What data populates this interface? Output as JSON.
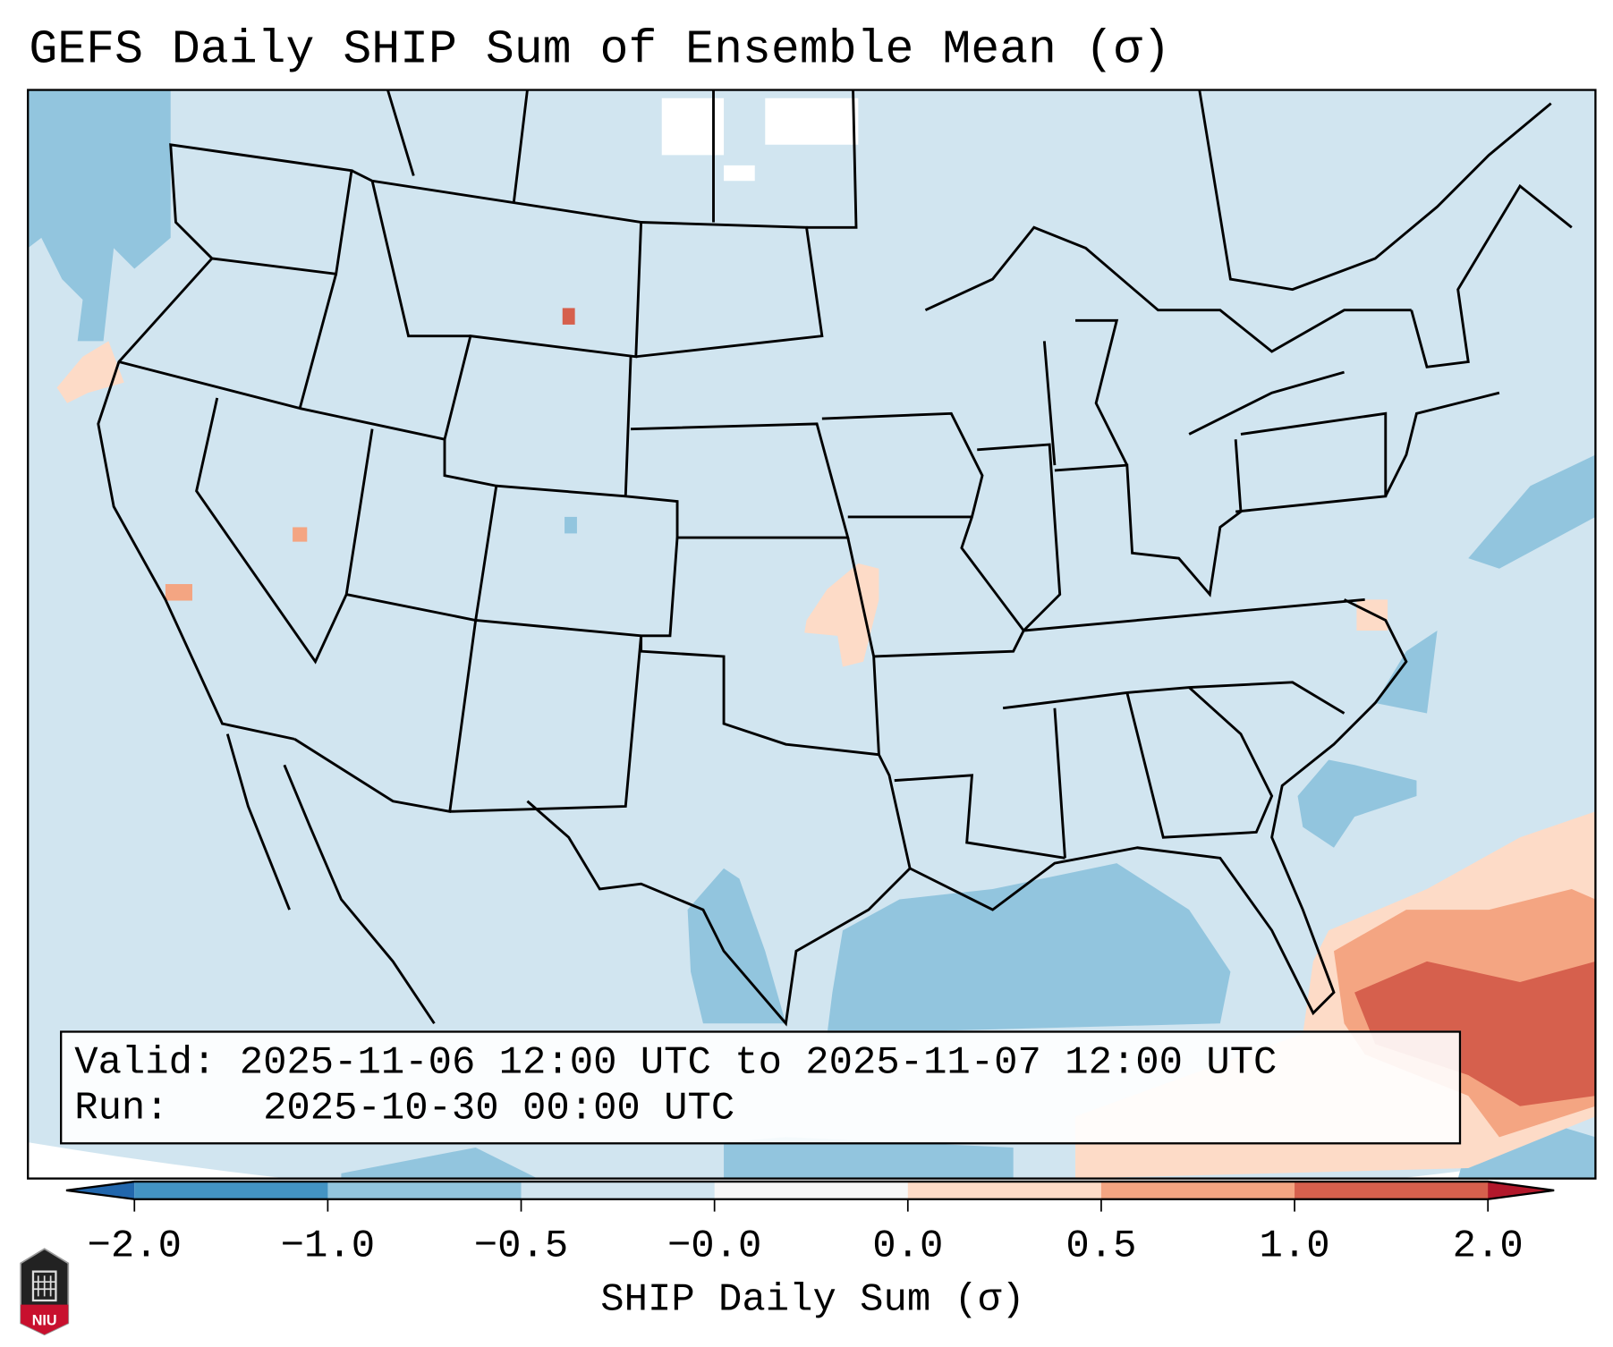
{
  "title": "GEFS Daily SHIP Sum of Ensemble Mean (σ)",
  "info": {
    "valid_label": "Valid:",
    "valid_value": "2025-11-06 12:00 UTC to 2025-11-07 12:00 UTC",
    "run_label": "Run:",
    "run_value": "2025-10-30 00:00 UTC"
  },
  "logo_text": "NIU",
  "chart_data": {
    "type": "heatmap",
    "title": "GEFS Daily SHIP Sum of Ensemble Mean (σ)",
    "colorbar": {
      "label": "SHIP Daily Sum (σ)",
      "tick_labels": [
        "-2.0",
        "-1.0",
        "-0.5",
        "-0.0",
        "0.0",
        "0.5",
        "1.0",
        "2.0"
      ],
      "bins": [
        {
          "range": "< -2.0",
          "color": "#2166ac"
        },
        {
          "range": "-2.0 to -1.0",
          "color": "#4393c3"
        },
        {
          "range": "-1.0 to -0.5",
          "color": "#92c5de"
        },
        {
          "range": "-0.5 to -0.0",
          "color": "#d1e5f0"
        },
        {
          "range": "-0.0 to 0.0",
          "color": "#f7f7f7"
        },
        {
          "range": "0.0 to 0.5",
          "color": "#fddbc7"
        },
        {
          "range": "0.5 to 1.0",
          "color": "#f4a582"
        },
        {
          "range": "1.0 to 2.0",
          "color": "#d6604d"
        },
        {
          "range": "> 2.0",
          "color": "#b2182b"
        }
      ],
      "extend": "both"
    },
    "region": "Contiguous United States"
  }
}
